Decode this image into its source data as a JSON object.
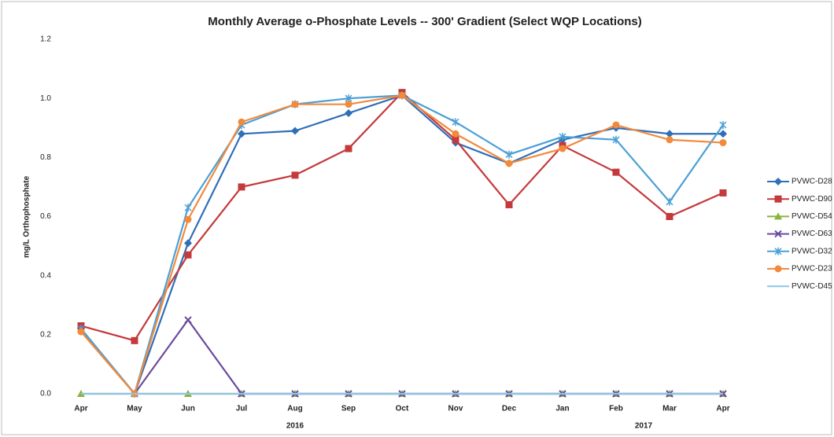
{
  "chart_data": {
    "type": "line",
    "title": "Monthly Average o-Phosphate Levels -- 300' Gradient (Select WQP Locations)",
    "y_label": "mg/L Orthophosphate",
    "categories": [
      "Apr",
      "May",
      "Jun",
      "Jul",
      "Aug",
      "Sep",
      "Oct",
      "Nov",
      "Dec",
      "Jan",
      "Feb",
      "Mar",
      "Apr"
    ],
    "x_group_labels": [
      "2016",
      "2017"
    ],
    "ylim": [
      0,
      1.2
    ],
    "yticks": [
      {
        "value": 0,
        "label": "0.0"
      },
      0.2,
      0.4,
      0.6,
      0.8,
      {
        "value": 1,
        "label": "1.0"
      },
      1.2
    ],
    "legend": "right",
    "series": [
      {
        "name": "PVWC-D28",
        "color": "#2f6fb8",
        "marker": "diamond",
        "values": [
          0.22,
          0,
          0.51,
          0.88,
          0.89,
          0.95,
          1.01,
          0.85,
          0.78,
          0.86,
          0.9,
          0.88,
          0.88
        ]
      },
      {
        "name": "PVWC-D90",
        "color": "#c4393b",
        "marker": "square",
        "values": [
          0.23,
          0.18,
          0.47,
          0.7,
          0.74,
          0.83,
          1.02,
          0.86,
          0.64,
          0.84,
          0.75,
          0.6,
          0.68
        ]
      },
      {
        "name": "PVWC-D54",
        "color": "#8ab43a",
        "marker": "triangle",
        "values": [
          0,
          0,
          0,
          0,
          0,
          0,
          0,
          0,
          0,
          0,
          0,
          0,
          0
        ]
      },
      {
        "name": "PVWC-D63",
        "color": "#6a4a9c",
        "marker": "x",
        "values": [
          0.22,
          0,
          0.25,
          0,
          0,
          0,
          0,
          0,
          0,
          0,
          0,
          0,
          0
        ]
      },
      {
        "name": "PVWC-D32",
        "color": "#4aa0d6",
        "marker": "star",
        "values": [
          0.22,
          0,
          0.63,
          0.91,
          0.98,
          1,
          1.01,
          0.92,
          0.81,
          0.87,
          0.86,
          0.65,
          0.91
        ]
      },
      {
        "name": "PVWC-D23",
        "color": "#f28a3c",
        "marker": "circle",
        "values": [
          0.21,
          0,
          0.59,
          0.92,
          0.98,
          0.98,
          1.01,
          0.88,
          0.78,
          0.83,
          0.91,
          0.86,
          0.85
        ]
      },
      {
        "name": "PVWC-D45",
        "color": "#8ec4ea",
        "marker": "none",
        "values": [
          0,
          0,
          0,
          0,
          0,
          0,
          0,
          0,
          0,
          0,
          0,
          0,
          0
        ]
      }
    ]
  }
}
